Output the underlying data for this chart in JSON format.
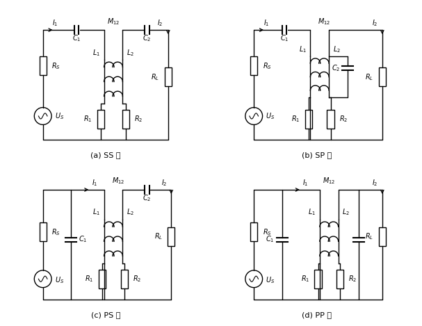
{
  "background_color": "#ffffff",
  "line_color": "#000000",
  "labels": {
    "a": "(a) SS 型",
    "b": "(b) SP 型",
    "c": "(c) PS 型",
    "d": "(d) PP 型"
  },
  "font_size": 7.5
}
